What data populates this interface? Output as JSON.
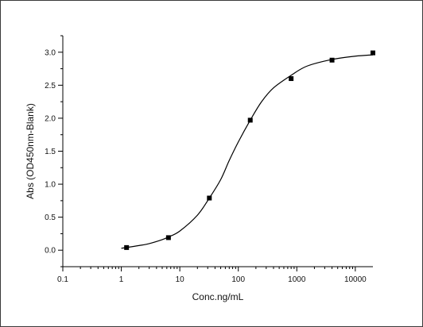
{
  "chart_data": {
    "type": "scatter",
    "xlabel": "Conc.ng/mL",
    "ylabel": "Abs (OD450nm-Blank)",
    "x_scale": "log",
    "xlim": [
      0.1,
      20000
    ],
    "ylim": [
      -0.25,
      3.25
    ],
    "x_ticks": [
      0.1,
      1,
      10,
      100,
      1000,
      10000
    ],
    "x_tick_labels": [
      "0.1",
      "1",
      "10",
      "100",
      "1000",
      "10000"
    ],
    "y_ticks": [
      0.0,
      0.5,
      1.0,
      1.5,
      2.0,
      2.5,
      3.0
    ],
    "y_tick_labels": [
      "0.0",
      "0.5",
      "1.0",
      "1.5",
      "2.0",
      "2.5",
      "3.0"
    ],
    "grid": false,
    "legend": "none",
    "marker_color": "#000000",
    "line_color": "#000000",
    "series": [
      {
        "type": "scatter",
        "x": [
          1.23,
          6.4,
          32,
          160,
          800,
          4000,
          20000
        ],
        "y": [
          0.04,
          0.19,
          0.79,
          1.97,
          2.6,
          2.88,
          2.99
        ]
      },
      {
        "type": "line",
        "fit": "4PL",
        "x": [
          1.0,
          1.23,
          2,
          3,
          5,
          6.4,
          10,
          20,
          32,
          50,
          70,
          100,
          160,
          250,
          400,
          800,
          1500,
          4000,
          10000,
          20000
        ],
        "y": [
          0.03,
          0.04,
          0.07,
          0.1,
          0.16,
          0.2,
          0.29,
          0.53,
          0.79,
          1.07,
          1.36,
          1.64,
          1.97,
          2.25,
          2.46,
          2.65,
          2.79,
          2.89,
          2.94,
          2.96
        ]
      }
    ]
  }
}
